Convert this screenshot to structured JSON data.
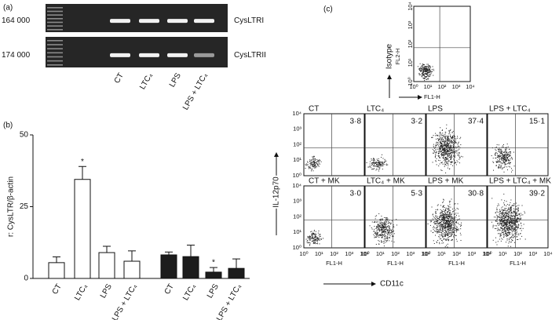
{
  "panel_a": {
    "label": "(a)",
    "blots": [
      {
        "size": "164 000",
        "name": "CysLTRI"
      },
      {
        "size": "174 000",
        "name": "CysLTRII"
      }
    ],
    "lanes": [
      "CT",
      "LTC₄",
      "LPS",
      "LPS + LTC₄"
    ]
  },
  "chart_data": {
    "type": "bar",
    "panel_label": "(b)",
    "ylabel": "r: CysLTR/β-actin",
    "ylim": [
      0,
      50
    ],
    "yticks": [
      0,
      25,
      50
    ],
    "series": [
      {
        "color": "#ffffff",
        "categories": [
          "CT",
          "LTC₄",
          "LPS",
          "LPS + LTC₄"
        ],
        "values": [
          5.5,
          34.5,
          9,
          6
        ],
        "errors": [
          2,
          4.5,
          2.2,
          3.6
        ],
        "annotations": [
          null,
          "*",
          null,
          null
        ]
      },
      {
        "color": "#1c1c1c",
        "categories": [
          "CT",
          "LTC₄",
          "LPS",
          "LPS + LTC₄"
        ],
        "values": [
          8.2,
          7.6,
          2.2,
          3.5
        ],
        "errors": [
          1,
          4,
          1.6,
          3.3
        ],
        "annotations": [
          null,
          null,
          "*",
          null
        ]
      }
    ]
  },
  "panel_c": {
    "label": "(c)",
    "ticks": [
      "10⁰",
      "10¹",
      "10²",
      "10³",
      "10⁴"
    ],
    "isotype": {
      "ylabel": "Isotype",
      "yname": "FL2-H",
      "xname": "FL1-H"
    },
    "ylabel": "IL-12p70",
    "xlabel": "CD11c",
    "xname": "FL1-H",
    "plots": [
      {
        "title": "CT",
        "percent": "3·8"
      },
      {
        "title": "LTC₄",
        "percent": "3·2"
      },
      {
        "title": "LPS",
        "percent": "37·4"
      },
      {
        "title": "LPS + LTC₄",
        "percent": "15·1"
      },
      {
        "title": "CT + MK",
        "percent": "3·0"
      },
      {
        "title": "LTC₄ + MK",
        "percent": "5·3"
      },
      {
        "title": "LPS + MK",
        "percent": "30·8"
      },
      {
        "title": "LPS + LTC₄ + MK",
        "percent": "39·2"
      }
    ]
  }
}
